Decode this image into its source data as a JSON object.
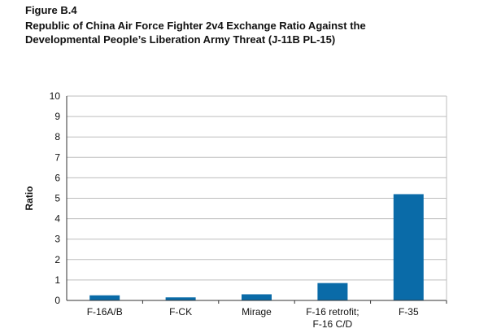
{
  "figure": {
    "label": "Figure B.4",
    "title_line1": "Republic of China Air Force Fighter 2v4 Exchange Ratio Against the",
    "title_line2": "Developmental People’s Liberation Army Threat (J-11B PL-15)"
  },
  "colors": {
    "bar": "#0a6ba8",
    "gridline": "#bdbdbd",
    "axis": "#333333"
  },
  "chart_data": {
    "type": "bar",
    "title": "Republic of China Air Force Fighter 2v4 Exchange Ratio Against the Developmental People’s Liberation Army Threat (J-11B PL-15)",
    "xlabel": "",
    "ylabel": "Ratio",
    "ylim": [
      0,
      10
    ],
    "yticks": [
      0,
      1,
      2,
      3,
      4,
      5,
      6,
      7,
      8,
      9,
      10
    ],
    "grid": true,
    "categories": [
      [
        "F-16A/B"
      ],
      [
        "F-CK"
      ],
      [
        "Mirage"
      ],
      [
        "F-16 retrofit;",
        "F-16 C/D"
      ],
      [
        "F-35"
      ]
    ],
    "values": [
      0.25,
      0.15,
      0.3,
      0.85,
      5.2
    ]
  }
}
